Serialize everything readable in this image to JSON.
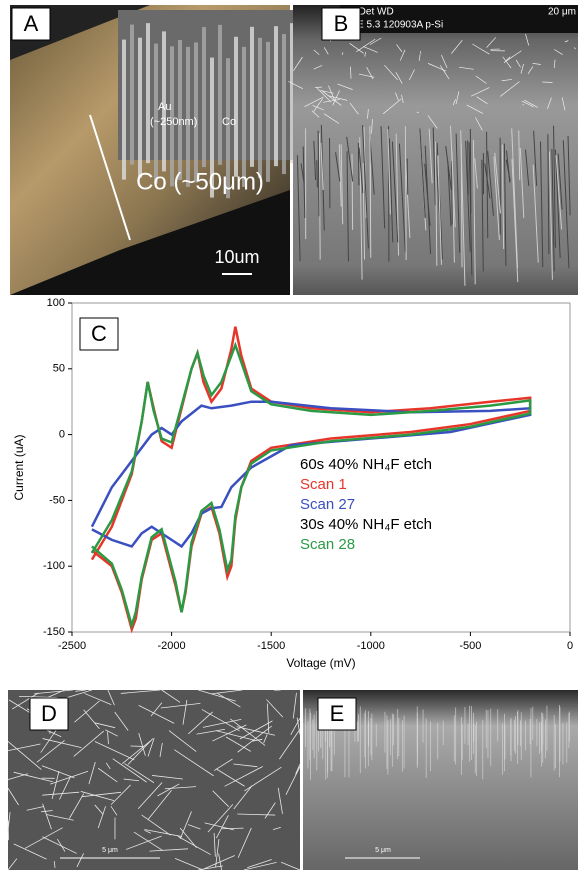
{
  "chart_data": {
    "type": "line",
    "xlabel": "Voltage (mV)",
    "ylabel": "Current (uA)",
    "xlim": [
      -2500,
      0
    ],
    "xticks": [
      -2500,
      -2000,
      -1500,
      -1000,
      -500,
      0
    ],
    "ylim": [
      -150,
      100
    ],
    "yticks": [
      -150,
      -100,
      -50,
      0,
      50,
      100
    ],
    "annotations": [
      "60s 40% NH₄F etch",
      "30s 40% NH₄F etch"
    ],
    "series": [
      {
        "name": "Scan 1",
        "color": "#e8352a",
        "x": [
          -2400,
          -2300,
          -2200,
          -2150,
          -2120,
          -2090,
          -2050,
          -2000,
          -1950,
          -1900,
          -1870,
          -1840,
          -1800,
          -1750,
          -1700,
          -1680,
          -1650,
          -1600,
          -1500,
          -1300,
          -1000,
          -700,
          -400,
          -200,
          -200,
          -500,
          -800,
          -1200,
          -1500,
          -1600,
          -1650,
          -1680,
          -1700,
          -1720,
          -1760,
          -1800,
          -1850,
          -1900,
          -1930,
          -1950,
          -1980,
          -2050,
          -2100,
          -2150,
          -2180,
          -2200,
          -2250,
          -2300,
          -2400
        ],
        "values": [
          -95,
          -70,
          -30,
          10,
          40,
          20,
          -5,
          -10,
          20,
          50,
          62,
          40,
          25,
          35,
          65,
          82,
          60,
          35,
          25,
          20,
          17,
          20,
          25,
          28,
          18,
          8,
          2,
          -3,
          -10,
          -20,
          -40,
          -65,
          -100,
          -108,
          -75,
          -55,
          -60,
          -85,
          -120,
          -135,
          -115,
          -75,
          -80,
          -110,
          -140,
          -148,
          -120,
          -100,
          -88
        ]
      },
      {
        "name": "Scan 27",
        "color": "#3a4fc0",
        "x": [
          -2400,
          -2300,
          -2200,
          -2100,
          -2050,
          -2000,
          -1950,
          -1850,
          -1800,
          -1700,
          -1600,
          -1500,
          -1200,
          -800,
          -400,
          -200,
          -200,
          -600,
          -1000,
          -1400,
          -1600,
          -1700,
          -1750,
          -1800,
          -1850,
          -1900,
          -1950,
          -2000,
          -2100,
          -2150,
          -2200,
          -2300,
          -2400
        ],
        "values": [
          -70,
          -40,
          -20,
          0,
          5,
          0,
          10,
          22,
          20,
          22,
          25,
          25,
          20,
          17,
          18,
          20,
          15,
          2,
          -3,
          -8,
          -25,
          -40,
          -55,
          -56,
          -60,
          -75,
          -85,
          -80,
          -70,
          -75,
          -85,
          -80,
          -72
        ]
      },
      {
        "name": "Scan 28",
        "color": "#2a9a45",
        "x": [
          -2400,
          -2300,
          -2200,
          -2150,
          -2120,
          -2090,
          -2050,
          -2000,
          -1950,
          -1900,
          -1870,
          -1840,
          -1800,
          -1750,
          -1700,
          -1680,
          -1650,
          -1600,
          -1500,
          -1300,
          -1000,
          -700,
          -400,
          -200,
          -200,
          -500,
          -800,
          -1200,
          -1500,
          -1600,
          -1650,
          -1680,
          -1700,
          -1720,
          -1760,
          -1800,
          -1850,
          -1900,
          -1930,
          -1950,
          -1980,
          -2050,
          -2100,
          -2150,
          -2180,
          -2200,
          -2250,
          -2300,
          -2400
        ],
        "values": [
          -90,
          -65,
          -28,
          10,
          40,
          18,
          -3,
          -6,
          22,
          50,
          62,
          45,
          30,
          40,
          60,
          68,
          55,
          33,
          23,
          18,
          15,
          18,
          22,
          26,
          16,
          6,
          0,
          -5,
          -12,
          -22,
          -40,
          -62,
          -95,
          -103,
          -72,
          -52,
          -58,
          -82,
          -118,
          -135,
          -112,
          -72,
          -78,
          -108,
          -135,
          -145,
          -118,
          -98,
          -85
        ]
      }
    ]
  },
  "panels": {
    "labels": [
      "A",
      "B",
      "C",
      "D",
      "E"
    ],
    "a_texts": [
      "Co (~50μm)",
      "10um",
      "Au",
      "(~250nm)",
      "Co"
    ],
    "b_texts": [
      "oot Det  WD",
      "0   SE   5.3    120903A p-Si",
      "20 μm"
    ],
    "scale_texts": [
      "5 μm",
      "5 μm"
    ]
  }
}
